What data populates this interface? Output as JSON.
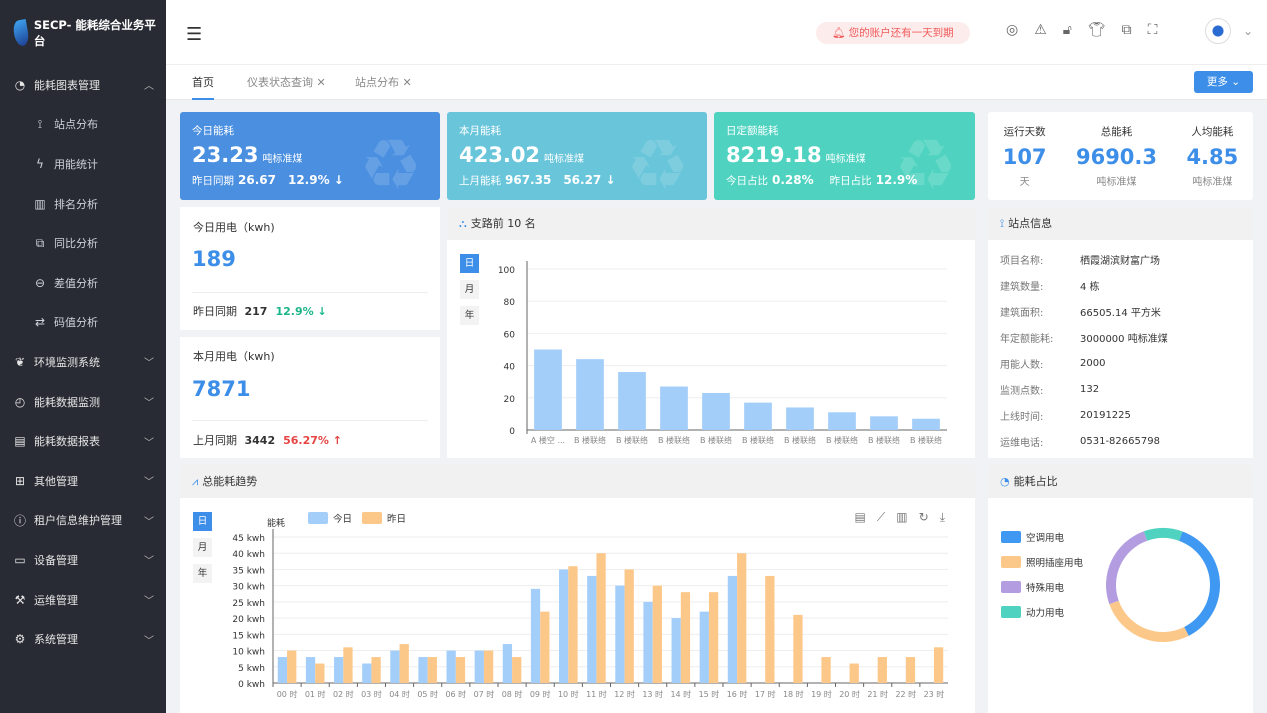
{
  "app": {
    "title": "SECP- 能耗综合业务平台"
  },
  "sidebar": {
    "items": [
      {
        "label": "能耗图表管理",
        "icon": "pie-chart-icon",
        "expanded": true
      },
      {
        "label": "站点分布",
        "icon": "antenna-icon",
        "sub": true
      },
      {
        "label": "用能统计",
        "icon": "lightning-icon",
        "sub": true
      },
      {
        "label": "排名分析",
        "icon": "bar-chart-icon",
        "sub": true
      },
      {
        "label": "同比分析",
        "icon": "copy-icon",
        "sub": true
      },
      {
        "label": "差值分析",
        "icon": "minus-circle-icon",
        "sub": true
      },
      {
        "label": "码值分析",
        "icon": "swap-icon",
        "sub": true
      },
      {
        "label": "环境监测系统",
        "icon": "leaf-icon"
      },
      {
        "label": "能耗数据监测",
        "icon": "gauge-icon"
      },
      {
        "label": "能耗数据报表",
        "icon": "report-icon"
      },
      {
        "label": "其他管理",
        "icon": "grid-icon"
      },
      {
        "label": "租户信息维护管理",
        "icon": "info-icon"
      },
      {
        "label": "设备管理",
        "icon": "device-icon"
      },
      {
        "label": "运维管理",
        "icon": "tools-icon"
      },
      {
        "label": "系统管理",
        "icon": "gear-icon"
      }
    ]
  },
  "header": {
    "alert": "您的账户还有一天到期"
  },
  "tabs": [
    {
      "label": "首页",
      "active": true
    },
    {
      "label": "仪表状态查询"
    },
    {
      "label": "站点分布"
    }
  ],
  "more_label": "更多",
  "cards": [
    {
      "title": "今日能耗",
      "value": "23.23",
      "unit": "吨标准煤",
      "s1": "昨日同期",
      "v1": "26.67",
      "v2": "12.9% ↓",
      "color": "#4a8fe0"
    },
    {
      "title": "本月能耗",
      "value": "423.02",
      "unit": "吨标准煤",
      "s1": "上月能耗",
      "v1": "967.35",
      "v2": "56.27 ↓",
      "color": "#68c5da"
    },
    {
      "title": "日定额能耗",
      "value": "8219.18",
      "unit": "吨标准煤",
      "s1": "今日占比",
      "v1": "0.28%",
      "s2": "昨日占比",
      "v2": "12.9%",
      "color": "#4fd3c0"
    }
  ],
  "summary": [
    {
      "label": "运行天数",
      "value": "107",
      "unit": "天"
    },
    {
      "label": "总能耗",
      "value": "9690.3",
      "unit": "吨标准煤"
    },
    {
      "label": "人均能耗",
      "value": "4.85",
      "unit": "吨标准煤"
    }
  ],
  "elec_today": {
    "title": "今日用电（kwh)",
    "value": "189",
    "cmp_label": "昨日同期",
    "cmp_value": "217",
    "change": "12.9% ↓",
    "change_color": "#1bb58a"
  },
  "elec_month": {
    "title": "本月用电（kwh)",
    "value": "7871",
    "cmp_label": "上月同期",
    "cmp_value": "3442",
    "change": "56.27% ↑",
    "change_color": "#e54545"
  },
  "segments": [
    "日",
    "月",
    "年"
  ],
  "site": {
    "title": "站点信息",
    "rows": [
      {
        "k": "项目名称:",
        "v": "栖霞湖滨财富广场"
      },
      {
        "k": "建筑数量:",
        "v": "4 栋"
      },
      {
        "k": "建筑面积:",
        "v": "66505.14 平方米"
      },
      {
        "k": "年定额能耗:",
        "v": "3000000 吨标准煤"
      },
      {
        "k": "用能人数:",
        "v": "2000"
      },
      {
        "k": "监测点数:",
        "v": "132"
      },
      {
        "k": "上线时间:",
        "v": "20191225"
      },
      {
        "k": "运维电话:",
        "v": "0531-82665798"
      }
    ]
  },
  "chart_data": [
    {
      "title": "支路前 10 名",
      "type": "bar",
      "categories": [
        "A 楼空 ...",
        "B 楼联络",
        "B 楼联络",
        "B 楼联络",
        "B 楼联络",
        "B 楼联络",
        "B 楼联络",
        "B 楼联络",
        "B 楼联络",
        "B 楼联络"
      ],
      "values": [
        50,
        44,
        36,
        27,
        23,
        17,
        14,
        11,
        8.5,
        7
      ],
      "ylim": [
        0,
        100
      ],
      "yticks": [
        0,
        20,
        40,
        60,
        80,
        100
      ],
      "color": "#a3cefa"
    },
    {
      "title": "总能耗趋势",
      "type": "bar",
      "ylabel": "能耗",
      "categories": [
        "00 时",
        "01 时",
        "02 时",
        "03 时",
        "04 时",
        "05 时",
        "06 时",
        "07 时",
        "08 时",
        "09 时",
        "10 时",
        "11 时",
        "12 时",
        "13 时",
        "14 时",
        "15 时",
        "16 时",
        "17 时",
        "18 时",
        "19 时",
        "20 时",
        "21 时",
        "22 时",
        "23 时"
      ],
      "series": [
        {
          "name": "今日",
          "color": "#a3cefa",
          "values": [
            8,
            8,
            8,
            6,
            10,
            8,
            10,
            10,
            12,
            29,
            35,
            33,
            30,
            25,
            20,
            22,
            33,
            null,
            null,
            null,
            null,
            null,
            null,
            null
          ]
        },
        {
          "name": "昨日",
          "color": "#fcc88a",
          "values": [
            10,
            6,
            11,
            8,
            12,
            8,
            8,
            10,
            8,
            22,
            36,
            40,
            35,
            30,
            28,
            28,
            40,
            33,
            21,
            8,
            6,
            8,
            8,
            11
          ]
        }
      ],
      "ylim": [
        0,
        45
      ],
      "yticks": [
        "0 kwh",
        "5 kwh",
        "10 kwh",
        "15 kwh",
        "20 kwh",
        "25 kwh",
        "30 kwh",
        "35 kwh",
        "40 kwh",
        "45 kwh"
      ],
      "legend": "top-left"
    },
    {
      "title": "能耗占比",
      "type": "pie",
      "donut": true,
      "slices": [
        {
          "name": "空调用电",
          "value": 37,
          "color": "#3f98f2"
        },
        {
          "name": "照明插座用电",
          "value": 27,
          "color": "#fcc88a"
        },
        {
          "name": "特殊用电",
          "value": 25,
          "color": "#b39de0"
        },
        {
          "name": "动力用电",
          "value": 11,
          "color": "#4fd3c0"
        }
      ],
      "legend": "left"
    }
  ]
}
